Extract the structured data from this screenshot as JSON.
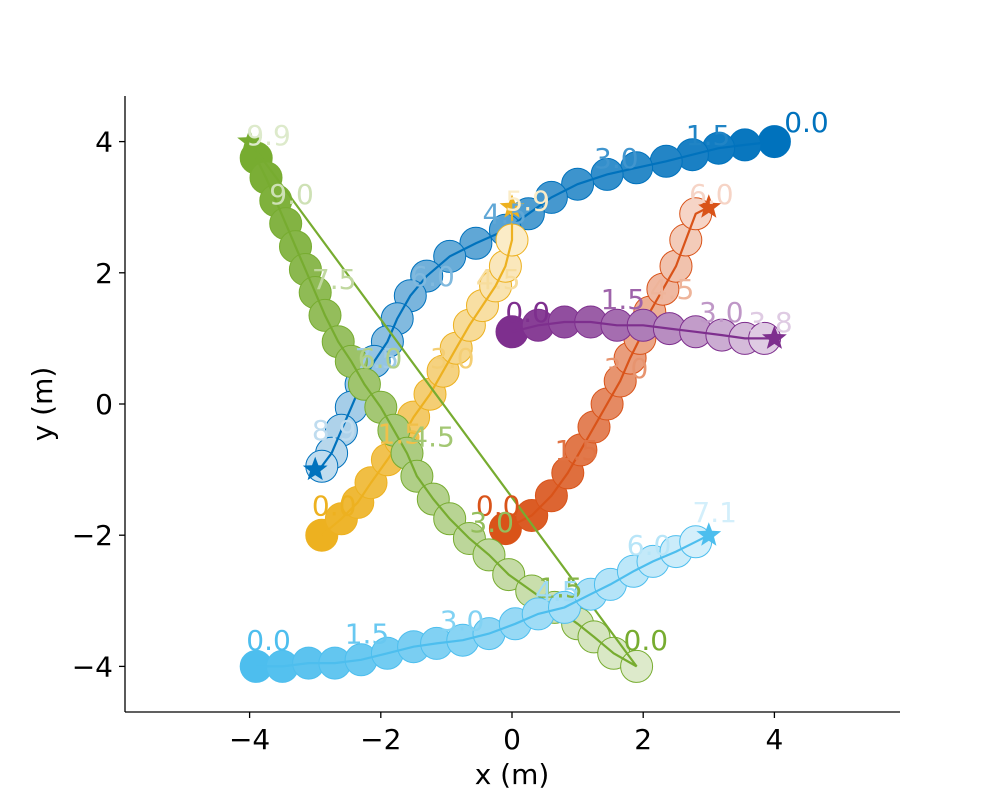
{
  "chart_data": {
    "type": "scatter",
    "title": "",
    "xlabel": "x (m)",
    "ylabel": "y (m)",
    "xlim": [
      -5.9,
      5.9
    ],
    "ylim": [
      -4.65,
      4.65
    ],
    "xticks": [
      -4,
      -2,
      0,
      2,
      4
    ],
    "yticks": [
      -4,
      -2,
      0,
      2,
      4
    ],
    "xtick_labels": [
      "−4",
      "−2",
      "0",
      "2",
      "4"
    ],
    "ytick_labels": [
      "−4",
      "−2",
      "0",
      "2",
      "4"
    ],
    "grid": false,
    "legend": "none",
    "series": [
      {
        "color": "#0072BD",
        "points": [
          [
            4.0,
            4.0
          ],
          [
            3.55,
            3.95
          ],
          [
            3.15,
            3.9
          ],
          [
            2.75,
            3.8
          ],
          [
            2.35,
            3.7
          ],
          [
            1.9,
            3.6
          ],
          [
            1.45,
            3.5
          ],
          [
            1.0,
            3.35
          ],
          [
            0.6,
            3.15
          ],
          [
            0.25,
            2.9
          ],
          [
            -0.1,
            2.65
          ],
          [
            -0.55,
            2.45
          ],
          [
            -0.95,
            2.25
          ],
          [
            -1.3,
            1.95
          ],
          [
            -1.55,
            1.65
          ],
          [
            -1.75,
            1.3
          ],
          [
            -1.9,
            0.95
          ],
          [
            -2.1,
            0.65
          ],
          [
            -2.3,
            0.3
          ],
          [
            -2.45,
            -0.05
          ],
          [
            -2.6,
            -0.4
          ],
          [
            -2.75,
            -0.75
          ],
          [
            -2.9,
            -0.95
          ]
        ],
        "goal": [
          -3.0,
          -1.0
        ],
        "time_labels": [
          {
            "text": "0.0",
            "x": 4.15,
            "y": 4.15
          },
          {
            "text": "1.5",
            "x": 2.65,
            "y": 3.95
          },
          {
            "text": "3.0",
            "x": 1.25,
            "y": 3.6
          },
          {
            "text": "4.5",
            "x": -0.45,
            "y": 2.75
          },
          {
            "text": "6.0",
            "x": -1.55,
            "y": 1.8
          },
          {
            "text": "7.5",
            "x": -2.4,
            "y": 0.55
          },
          {
            "text": "8.9",
            "x": -3.05,
            "y": -0.55
          }
        ]
      },
      {
        "color": "#D95319",
        "points": [
          [
            -0.1,
            -1.9
          ],
          [
            0.3,
            -1.7
          ],
          [
            0.6,
            -1.4
          ],
          [
            0.85,
            -1.05
          ],
          [
            1.05,
            -0.7
          ],
          [
            1.25,
            -0.35
          ],
          [
            1.45,
            0.0
          ],
          [
            1.65,
            0.35
          ],
          [
            1.8,
            0.7
          ],
          [
            1.95,
            1.0
          ],
          [
            2.1,
            1.4
          ],
          [
            2.3,
            1.75
          ],
          [
            2.5,
            2.1
          ],
          [
            2.65,
            2.5
          ],
          [
            2.8,
            2.9
          ]
        ],
        "goal": [
          3.0,
          3.0
        ],
        "time_labels": [
          {
            "text": "0.0",
            "x": -0.55,
            "y": -1.7
          },
          {
            "text": "1.5",
            "x": 0.65,
            "y": -0.85
          },
          {
            "text": "3.0",
            "x": 1.4,
            "y": 0.4
          },
          {
            "text": "4.5",
            "x": 2.1,
            "y": 1.6
          },
          {
            "text": "6.0",
            "x": 2.7,
            "y": 3.05
          }
        ]
      },
      {
        "color": "#EDB120",
        "points": [
          [
            -2.9,
            -2.0
          ],
          [
            -2.6,
            -1.75
          ],
          [
            -2.35,
            -1.5
          ],
          [
            -2.15,
            -1.2
          ],
          [
            -1.9,
            -0.85
          ],
          [
            -1.7,
            -0.55
          ],
          [
            -1.5,
            -0.2
          ],
          [
            -1.25,
            0.15
          ],
          [
            -1.05,
            0.5
          ],
          [
            -0.85,
            0.85
          ],
          [
            -0.65,
            1.2
          ],
          [
            -0.45,
            1.5
          ],
          [
            -0.25,
            1.8
          ],
          [
            -0.1,
            2.1
          ],
          [
            0.0,
            2.5
          ]
        ],
        "goal": [
          0.0,
          3.0
        ],
        "time_labels": [
          {
            "text": "0.0",
            "x": -3.05,
            "y": -1.7
          },
          {
            "text": "1.5",
            "x": -2.05,
            "y": -0.6
          },
          {
            "text": "3.0",
            "x": -1.25,
            "y": 0.55
          },
          {
            "text": "4.5",
            "x": -0.55,
            "y": 1.75
          },
          {
            "text": "5.9",
            "x": -0.1,
            "y": 2.95
          }
        ]
      },
      {
        "color": "#7E2F8E",
        "points": [
          [
            0.0,
            1.1
          ],
          [
            0.4,
            1.2
          ],
          [
            0.8,
            1.25
          ],
          [
            1.2,
            1.25
          ],
          [
            1.6,
            1.2
          ],
          [
            2.0,
            1.2
          ],
          [
            2.4,
            1.15
          ],
          [
            2.8,
            1.1
          ],
          [
            3.2,
            1.05
          ],
          [
            3.55,
            1.0
          ],
          [
            3.85,
            1.0
          ]
        ],
        "goal": [
          4.0,
          1.0
        ],
        "time_labels": [
          {
            "text": "0.0",
            "x": -0.1,
            "y": 1.25
          },
          {
            "text": "1.5",
            "x": 1.35,
            "y": 1.45
          },
          {
            "text": "3.0",
            "x": 2.85,
            "y": 1.25
          },
          {
            "text": "3.8",
            "x": 3.6,
            "y": 1.1
          }
        ]
      },
      {
        "color": "#77AC30",
        "points": [
          [
            -3.9,
            3.75
          ],
          [
            -3.75,
            3.45
          ],
          [
            -3.6,
            3.1
          ],
          [
            -3.45,
            2.75
          ],
          [
            -3.3,
            2.4
          ],
          [
            -3.15,
            2.05
          ],
          [
            -3.0,
            1.7
          ],
          [
            -2.85,
            1.35
          ],
          [
            -2.65,
            0.95
          ],
          [
            -2.45,
            0.65
          ],
          [
            -2.25,
            0.3
          ],
          [
            -2.0,
            -0.05
          ],
          [
            -1.8,
            -0.4
          ],
          [
            -1.6,
            -0.75
          ],
          [
            -1.45,
            -1.1
          ],
          [
            -1.2,
            -1.45
          ],
          [
            -0.95,
            -1.75
          ],
          [
            -0.65,
            -2.05
          ],
          [
            -0.35,
            -2.3
          ],
          [
            -0.05,
            -2.6
          ],
          [
            0.3,
            -2.85
          ],
          [
            0.65,
            -3.1
          ],
          [
            1.0,
            -3.35
          ],
          [
            1.25,
            -3.55
          ],
          [
            1.55,
            -3.8
          ],
          [
            1.9,
            -4.0
          ]
        ],
        "goal": [
          -4.0,
          4.0
        ],
        "time_labels": [
          {
            "text": "0.0",
            "x": 1.7,
            "y": -3.75
          },
          {
            "text": "1.5",
            "x": 0.4,
            "y": -2.95
          },
          {
            "text": "3.0",
            "x": -0.65,
            "y": -1.95
          },
          {
            "text": "4.5",
            "x": -1.55,
            "y": -0.65
          },
          {
            "text": "6.0",
            "x": -2.35,
            "y": 0.55
          },
          {
            "text": "7.5",
            "x": -3.05,
            "y": 1.75
          },
          {
            "text": "9.0",
            "x": -3.7,
            "y": 3.05
          },
          {
            "text": "9.9",
            "x": -4.05,
            "y": 3.95
          }
        ]
      },
      {
        "color": "#4DBEEE",
        "points": [
          [
            -3.9,
            -4.0
          ],
          [
            -3.5,
            -4.0
          ],
          [
            -3.1,
            -3.95
          ],
          [
            -2.7,
            -3.95
          ],
          [
            -2.3,
            -3.9
          ],
          [
            -1.9,
            -3.8
          ],
          [
            -1.5,
            -3.7
          ],
          [
            -1.15,
            -3.65
          ],
          [
            -0.75,
            -3.6
          ],
          [
            -0.35,
            -3.5
          ],
          [
            0.05,
            -3.35
          ],
          [
            0.4,
            -3.2
          ],
          [
            0.8,
            -3.1
          ],
          [
            1.2,
            -2.9
          ],
          [
            1.5,
            -2.75
          ],
          [
            1.85,
            -2.55
          ],
          [
            2.15,
            -2.4
          ],
          [
            2.5,
            -2.25
          ],
          [
            2.8,
            -2.1
          ]
        ],
        "goal": [
          3.0,
          -2.0
        ],
        "time_labels": [
          {
            "text": "0.0",
            "x": -4.05,
            "y": -3.75
          },
          {
            "text": "1.5",
            "x": -2.55,
            "y": -3.65
          },
          {
            "text": "3.0",
            "x": -1.1,
            "y": -3.45
          },
          {
            "text": "4.5",
            "x": 0.35,
            "y": -3.0
          },
          {
            "text": "6.0",
            "x": 1.75,
            "y": -2.3
          },
          {
            "text": "7.1",
            "x": 2.75,
            "y": -1.8
          }
        ]
      }
    ]
  }
}
